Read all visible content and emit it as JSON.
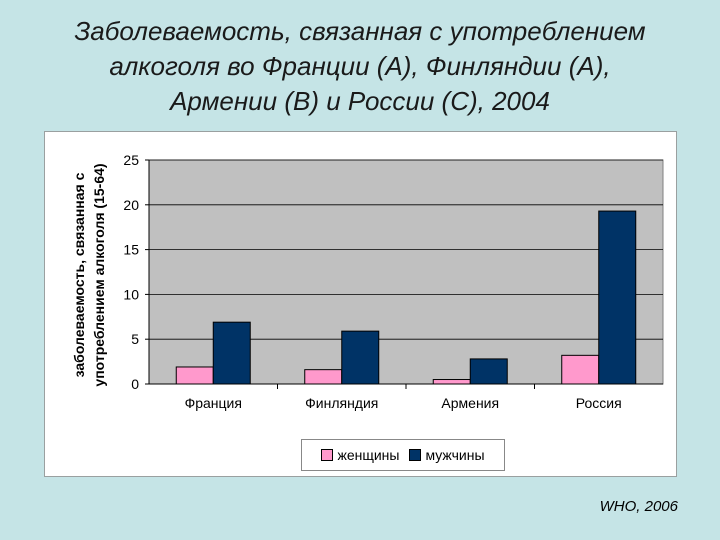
{
  "title_lines": [
    "Заболеваемость, связанная с употреблением",
    "алкоголя во Франции (А), Финляндии (А),",
    "Армении (В) и России (С), 2004"
  ],
  "source": "WHO, 2006",
  "colors": {
    "background": "#c5e4e6",
    "plot_area": "#c0c0c0",
    "women": "#ff99cc",
    "men": "#003366"
  },
  "chart_data": {
    "type": "bar",
    "ylabel_lines": [
      "заболеваемость, связанная с",
      "употреблением алкоголя (15-64)"
    ],
    "categories": [
      "Франция",
      "Финляндия",
      "Армения",
      "Россия"
    ],
    "series": [
      {
        "name": "женщины",
        "values": [
          1.9,
          1.6,
          0.5,
          3.2
        ]
      },
      {
        "name": "мужчины",
        "values": [
          6.9,
          5.9,
          2.8,
          19.3
        ]
      }
    ],
    "ylim": [
      0,
      25
    ],
    "yticks": [
      0,
      5,
      10,
      15,
      20,
      25
    ],
    "grid": true,
    "legend_position": "bottom"
  }
}
